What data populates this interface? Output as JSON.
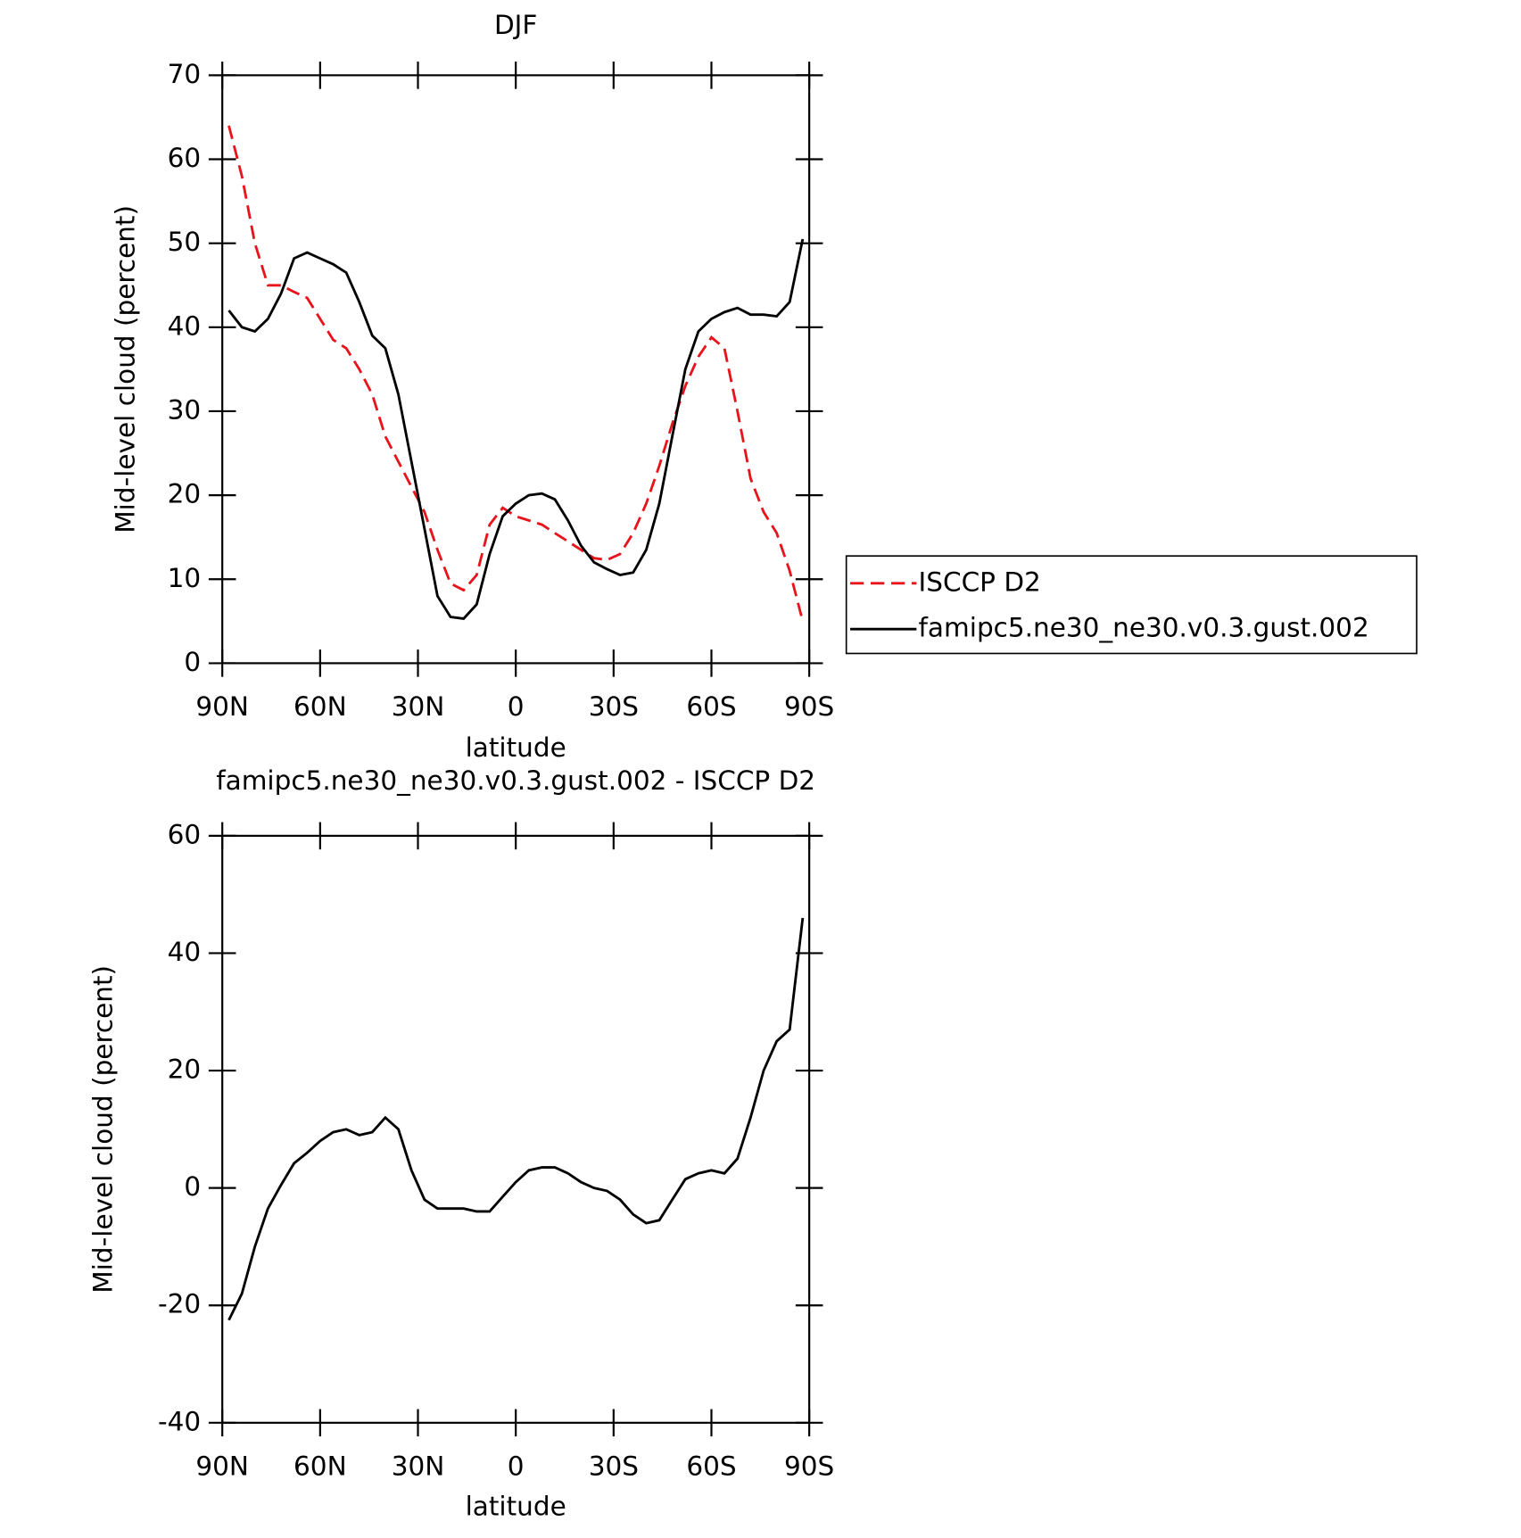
{
  "chart_data": [
    {
      "type": "line",
      "title": "DJF",
      "xlabel": "latitude",
      "ylabel": "Mid-level cloud (percent)",
      "x": [
        88,
        84,
        80,
        76,
        72,
        68,
        64,
        60,
        56,
        52,
        48,
        44,
        40,
        36,
        32,
        28,
        24,
        20,
        16,
        12,
        8,
        4,
        0,
        -4,
        -8,
        -12,
        -16,
        -20,
        -24,
        -28,
        -32,
        -36,
        -40,
        -44,
        -48,
        -52,
        -56,
        -60,
        -64,
        -68,
        -72,
        -76,
        -80,
        -84,
        -88
      ],
      "xlim": [
        90,
        -90
      ],
      "xticks": [
        {
          "value": 90,
          "label": "90N"
        },
        {
          "value": 60,
          "label": "60N"
        },
        {
          "value": 30,
          "label": "30N"
        },
        0,
        {
          "value": -30,
          "label": "30S"
        },
        {
          "value": -60,
          "label": "60S"
        },
        {
          "value": -90,
          "label": "90S"
        }
      ],
      "ylim": [
        0,
        70
      ],
      "yticks": [
        0,
        10,
        20,
        30,
        40,
        50,
        60,
        70
      ],
      "series": [
        {
          "name": "ISCCP D2",
          "color": "#e8141c",
          "dash": true,
          "values": [
            64,
            58,
            50,
            45,
            45,
            44.2,
            43.5,
            41,
            38.5,
            37.5,
            35,
            32,
            27,
            24,
            21,
            18,
            13.5,
            9.5,
            8.7,
            10.5,
            16.5,
            18.5,
            17.5,
            17,
            16.5,
            15.5,
            14.5,
            13.5,
            12.5,
            12.3,
            13,
            15.5,
            19,
            23.5,
            28.5,
            33,
            36.5,
            38.8,
            37.5,
            30,
            22,
            18,
            15.5,
            11,
            5
          ]
        },
        {
          "name": "famipc5.ne30_ne30.v0.3.gust.002",
          "color": "#000000",
          "dash": false,
          "values": [
            42,
            40,
            39.5,
            41,
            44,
            48.2,
            48.9,
            48.2,
            47.5,
            46.5,
            43,
            39,
            37.5,
            32,
            24,
            16,
            8,
            5.5,
            5.3,
            7,
            13,
            17.5,
            19,
            20,
            20.2,
            19.5,
            17,
            14,
            12,
            11.2,
            10.5,
            10.8,
            13.5,
            19,
            27,
            35,
            39.5,
            41,
            41.8,
            42.3,
            41.5,
            41.5,
            41.3,
            43,
            50.5
          ]
        }
      ]
    },
    {
      "type": "line",
      "title": "famipc5.ne30_ne30.v0.3.gust.002 - ISCCP D2",
      "xlabel": "latitude",
      "ylabel": "Mid-level cloud (percent)",
      "x": [
        88,
        84,
        80,
        76,
        72,
        68,
        64,
        60,
        56,
        52,
        48,
        44,
        40,
        36,
        32,
        28,
        24,
        20,
        16,
        12,
        8,
        4,
        0,
        -4,
        -8,
        -12,
        -16,
        -20,
        -24,
        -28,
        -32,
        -36,
        -40,
        -44,
        -48,
        -52,
        -56,
        -60,
        -64,
        -68,
        -72,
        -76,
        -80,
        -84,
        -88
      ],
      "xlim": [
        90,
        -90
      ],
      "xticks": [
        {
          "value": 90,
          "label": "90N"
        },
        {
          "value": 60,
          "label": "60N"
        },
        {
          "value": 30,
          "label": "30N"
        },
        0,
        {
          "value": -30,
          "label": "30S"
        },
        {
          "value": -60,
          "label": "60S"
        },
        {
          "value": -90,
          "label": "90S"
        }
      ],
      "ylim": [
        -40,
        60
      ],
      "yticks": [
        -40,
        -20,
        0,
        20,
        40,
        60
      ],
      "series": [
        {
          "color": "#000000",
          "dash": false,
          "values": [
            -22.5,
            -18,
            -10,
            -3.5,
            0.5,
            4.2,
            6,
            8,
            9.5,
            10,
            9,
            9.5,
            12,
            10,
            3,
            -2,
            -3.5,
            -3.5,
            -3.5,
            -4,
            -4,
            -1.5,
            1,
            3,
            3.5,
            3.5,
            2.5,
            1,
            0,
            -0.5,
            -2,
            -4.5,
            -6,
            -5.5,
            -2,
            1.5,
            2.5,
            3,
            2.5,
            5,
            12,
            20,
            25,
            27,
            46
          ]
        }
      ]
    }
  ]
}
